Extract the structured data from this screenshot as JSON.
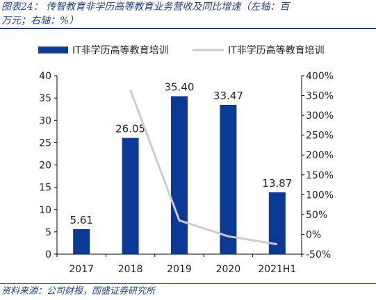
{
  "header": {
    "title_line1": "图表24： 传智教育非学历高等教育业务营收及同比增速（左轴：百",
    "title_line2": "万元；右轴：%）"
  },
  "footer": {
    "source": "资料来源：公司财报，国盛证券研究所"
  },
  "colors": {
    "bar": "#0b3a96",
    "line": "#cccccc",
    "text": "#222222",
    "title": "#1f3f8f"
  },
  "chart_data": {
    "type": "bar",
    "categories": [
      "2017",
      "2018",
      "2019",
      "2020",
      "2021H1"
    ],
    "series": [
      {
        "name": "IT非学历高等教育培训",
        "type": "bar",
        "axis": "left",
        "values": [
          5.61,
          26.05,
          35.4,
          33.47,
          13.87
        ],
        "labels": [
          "5.61",
          "26.05",
          "35.40",
          "33.47",
          "13.87"
        ]
      },
      {
        "name": "IT非学历高等教育培训",
        "type": "line",
        "axis": "right",
        "values": [
          null,
          364,
          35,
          -5,
          -25
        ]
      }
    ],
    "y_left": {
      "min": 0,
      "max": 40,
      "ticks": [
        0,
        5,
        10,
        15,
        20,
        25,
        30,
        35,
        40
      ],
      "tick_labels": [
        "0",
        "5",
        "10",
        "15",
        "20",
        "25",
        "30",
        "35",
        "40"
      ]
    },
    "y_right": {
      "min": -50,
      "max": 400,
      "ticks": [
        -50,
        0,
        50,
        100,
        150,
        200,
        250,
        300,
        350,
        400
      ],
      "tick_labels": [
        "-50%",
        "0%",
        "50%",
        "100%",
        "150%",
        "200%",
        "250%",
        "300%",
        "350%",
        "400%"
      ]
    },
    "legend_position": "top",
    "grid": false
  }
}
